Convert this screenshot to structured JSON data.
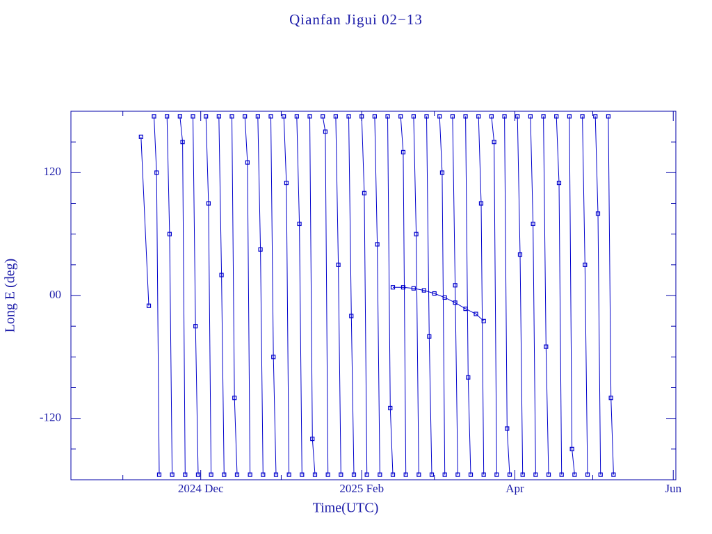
{
  "chart_data": {
    "type": "line",
    "title": "Qianfan Jigui 02−13",
    "x_label": "Time(UTC)",
    "y_label": "Long E (deg)",
    "xlim": [
      "2024-10-12",
      "2025-06-02"
    ],
    "xticks": [
      {
        "value": "2024-12-01",
        "label": "2024 Dec"
      },
      {
        "value": "2025-02-01",
        "label": "2025 Feb"
      },
      {
        "value": "2025-04-01",
        "label": "Apr"
      },
      {
        "value": "2025-06-01",
        "label": "Jun"
      }
    ],
    "x_minor_ticks": [
      "2024-11-01",
      "2025-01-01",
      "2025-03-01",
      "2025-05-01"
    ],
    "ylim": [
      -180,
      180
    ],
    "yticks": [
      {
        "value": 120,
        "label": "120"
      },
      {
        "value": 0,
        "label": "00"
      },
      {
        "value": -120,
        "label": "-120"
      }
    ],
    "y_minor_ticks": [
      -150,
      -90,
      -60,
      -30,
      30,
      60,
      90,
      150
    ],
    "markers": true,
    "series": [
      {
        "color": "#0000cc",
        "x": [
          "2024-11-08",
          "2024-11-11",
          null,
          "2024-11-13",
          "2024-11-14",
          "2024-11-15",
          null,
          "2024-11-18",
          "2024-11-19",
          "2024-11-20",
          null,
          "2024-11-23",
          "2024-11-24",
          "2024-11-25",
          null,
          "2024-11-28",
          "2024-11-29",
          "2024-11-30",
          null,
          "2024-12-03",
          "2024-12-04",
          "2024-12-05",
          null,
          "2024-12-08",
          "2024-12-09",
          "2024-12-10",
          null,
          "2024-12-13",
          "2024-12-14",
          "2024-12-15",
          null,
          "2024-12-18",
          "2024-12-19",
          "2024-12-20",
          null,
          "2024-12-23",
          "2024-12-24",
          "2024-12-25",
          null,
          "2024-12-28",
          "2024-12-29",
          "2024-12-30",
          null,
          "2025-01-02",
          "2025-01-03",
          "2025-01-04",
          null,
          "2025-01-07",
          "2025-01-08",
          "2025-01-09",
          null,
          "2025-01-12",
          "2025-01-13",
          "2025-01-14",
          null,
          "2025-01-17",
          "2025-01-18",
          "2025-01-19",
          null,
          "2025-01-22",
          "2025-01-23",
          "2025-01-24",
          null,
          "2025-01-27",
          "2025-01-28",
          "2025-01-29",
          null,
          "2025-02-01",
          "2025-02-02",
          "2025-02-03",
          null,
          "2025-02-06",
          "2025-02-07",
          "2025-02-08",
          null,
          "2025-02-11",
          "2025-02-12",
          "2025-02-13",
          null,
          "2025-02-16",
          "2025-02-17",
          "2025-02-18",
          null,
          "2025-02-21",
          "2025-02-22",
          "2025-02-23",
          null,
          "2025-02-26",
          "2025-02-27",
          "2025-02-28",
          null,
          "2025-03-03",
          "2025-03-04",
          "2025-03-05",
          null,
          "2025-03-08",
          "2025-03-09",
          "2025-03-10",
          null,
          "2025-03-13",
          "2025-03-14",
          "2025-03-15",
          null,
          "2025-03-18",
          "2025-03-19",
          "2025-03-20",
          null,
          "2025-03-23",
          "2025-03-24",
          "2025-03-25",
          null,
          "2025-03-28",
          "2025-03-29",
          "2025-03-30",
          null,
          "2025-04-02",
          "2025-04-03",
          "2025-04-04",
          null,
          "2025-04-07",
          "2025-04-08",
          "2025-04-09",
          null,
          "2025-04-12",
          "2025-04-13",
          "2025-04-14",
          null,
          "2025-04-17",
          "2025-04-18",
          "2025-04-19",
          null,
          "2025-04-22",
          "2025-04-23",
          "2025-04-24",
          null,
          "2025-04-27",
          "2025-04-28",
          "2025-04-29",
          null,
          "2025-05-02",
          "2025-05-03",
          "2025-05-04",
          null,
          "2025-05-07",
          "2025-05-08",
          "2025-05-09"
        ],
        "values": [
          155,
          -10,
          null,
          175,
          120,
          -175,
          null,
          175,
          60,
          -175,
          null,
          175,
          150,
          -175,
          null,
          175,
          -30,
          -175,
          null,
          175,
          90,
          -175,
          null,
          175,
          20,
          -175,
          null,
          175,
          -100,
          -175,
          null,
          175,
          130,
          -175,
          null,
          175,
          45,
          -175,
          null,
          175,
          -60,
          -175,
          null,
          175,
          110,
          -175,
          null,
          175,
          70,
          -175,
          null,
          175,
          -140,
          -175,
          null,
          175,
          160,
          -175,
          null,
          175,
          30,
          -175,
          null,
          175,
          -20,
          -175,
          null,
          175,
          100,
          -175,
          null,
          175,
          50,
          -175,
          null,
          175,
          -110,
          -175,
          null,
          175,
          140,
          -175,
          null,
          175,
          60,
          -175,
          null,
          175,
          -40,
          -175,
          null,
          175,
          120,
          -175,
          null,
          175,
          10,
          -175,
          null,
          175,
          -80,
          -175,
          null,
          175,
          90,
          -175,
          null,
          175,
          150,
          -175,
          null,
          175,
          -130,
          -175,
          null,
          175,
          40,
          -175,
          null,
          175,
          70,
          -175,
          null,
          175,
          -50,
          -175,
          null,
          175,
          110,
          -175,
          null,
          175,
          -150,
          -175,
          null,
          175,
          30,
          -175,
          null,
          175,
          80,
          -175,
          null,
          175,
          -100,
          -175
        ]
      },
      {
        "color": "#0000cc",
        "x": [
          "2025-02-13",
          "2025-02-17",
          "2025-02-21",
          "2025-02-25",
          "2025-03-01",
          "2025-03-05",
          "2025-03-09",
          "2025-03-13",
          "2025-03-17",
          "2025-03-20"
        ],
        "values": [
          8,
          8,
          7,
          5,
          2,
          -2,
          -7,
          -13,
          -18,
          -25
        ]
      }
    ]
  }
}
